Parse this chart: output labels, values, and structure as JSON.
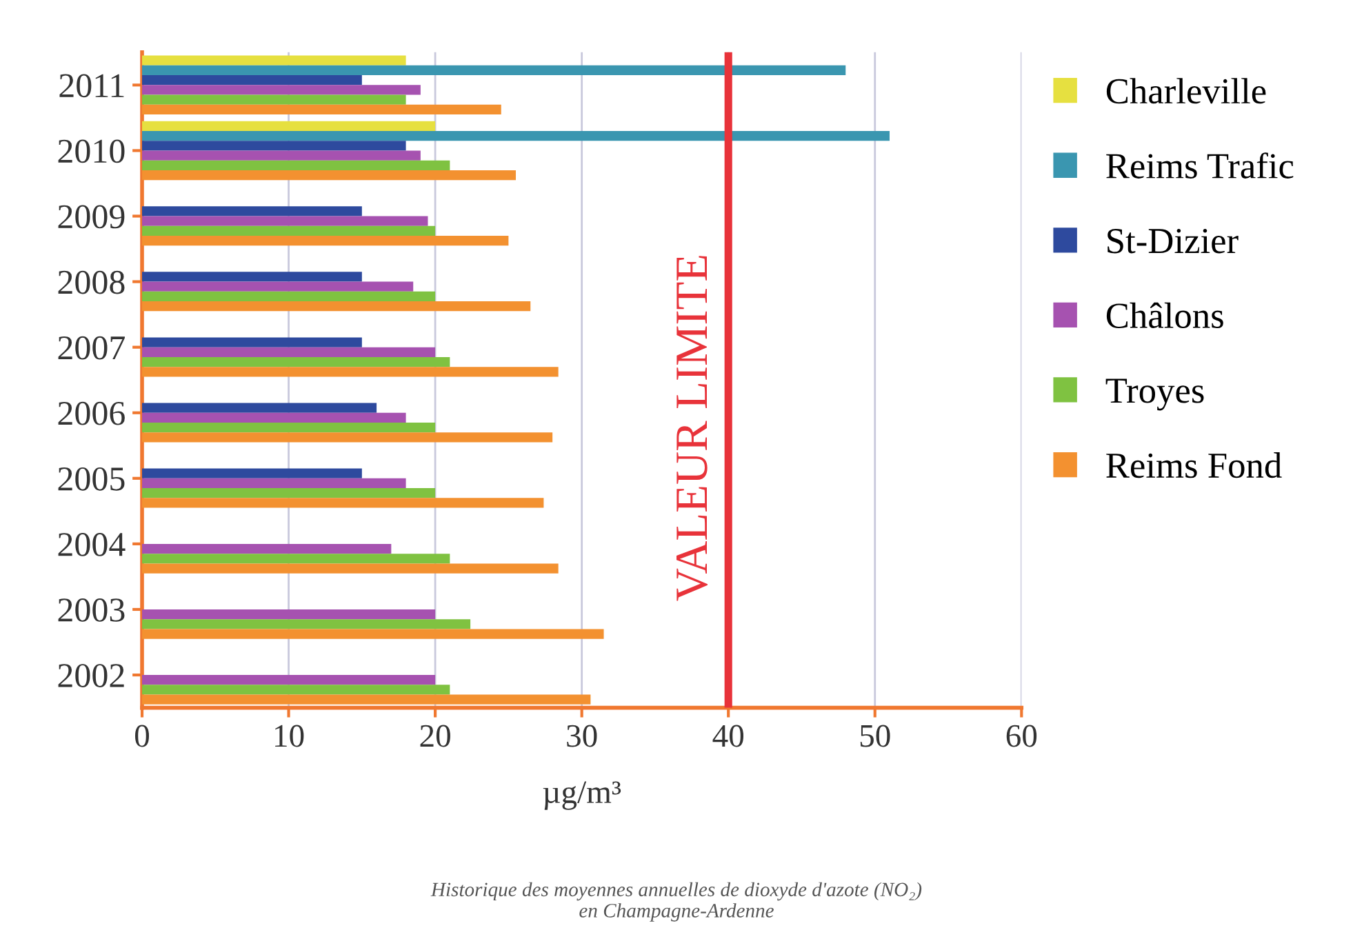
{
  "chart_data": {
    "type": "bar",
    "orientation": "horizontal",
    "xlabel": "µg/m³",
    "categories": [
      "2011",
      "2010",
      "2009",
      "2008",
      "2007",
      "2006",
      "2005",
      "2004",
      "2003",
      "2002"
    ],
    "series": [
      {
        "name": "Charleville",
        "color": "#e6e040",
        "values": [
          18,
          20,
          null,
          null,
          null,
          null,
          null,
          null,
          null,
          null
        ]
      },
      {
        "name": "Reims Trafic",
        "color": "#3a96b0",
        "values": [
          48,
          51,
          null,
          null,
          null,
          null,
          null,
          null,
          null,
          null
        ]
      },
      {
        "name": "St-Dizier",
        "color": "#2e4a9e",
        "values": [
          15,
          18,
          15,
          15,
          15,
          16,
          15,
          null,
          null,
          null
        ]
      },
      {
        "name": "Châlons",
        "color": "#a652b0",
        "values": [
          19,
          19,
          19.5,
          18.5,
          20,
          18,
          18,
          17,
          20,
          20
        ]
      },
      {
        "name": "Troyes",
        "color": "#7fc241",
        "values": [
          18,
          21,
          20,
          20,
          21,
          20,
          20,
          21,
          22.4,
          21
        ]
      },
      {
        "name": "Reims Fond",
        "color": "#f39130",
        "values": [
          24.5,
          25.5,
          25,
          26.5,
          28.4,
          28,
          27.4,
          28.4,
          31.5,
          30.6
        ]
      }
    ],
    "xlim": [
      0,
      60
    ],
    "xticks": [
      0,
      10,
      20,
      30,
      40,
      50,
      60
    ],
    "grid": "x",
    "legend": "right",
    "ref_lines": [
      {
        "axis": "x",
        "value": 40,
        "label": "VALEUR LIMITE",
        "color": "#e8333a"
      }
    ],
    "annotations": [
      "Historique des moyennes annuelles de dioxyde d'azote (NO₂)\nen Champagne-Ardenne"
    ]
  }
}
